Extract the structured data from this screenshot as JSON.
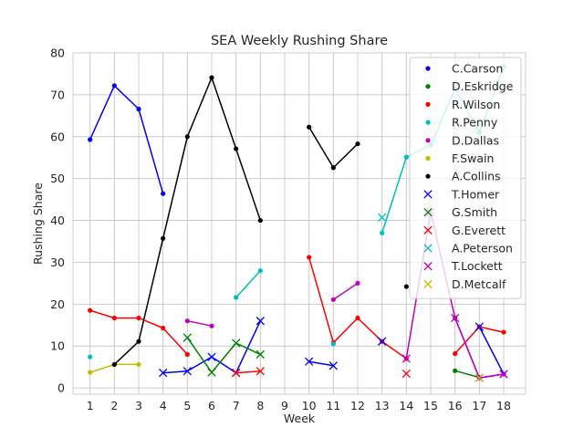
{
  "chart_data": {
    "type": "line",
    "title": "SEA Weekly Rushing Share",
    "xlabel": "Week",
    "ylabel": "Rushing Share",
    "xlim": [
      0.3,
      18.9
    ],
    "ylim": [
      -1.5,
      80
    ],
    "xticks": [
      1,
      2,
      3,
      4,
      5,
      6,
      7,
      8,
      9,
      10,
      11,
      12,
      13,
      14,
      15,
      16,
      17,
      18
    ],
    "yticks": [
      0,
      10,
      20,
      30,
      40,
      50,
      60,
      70,
      80
    ],
    "grid": true,
    "legend_position": "top-right",
    "series": [
      {
        "name": "C.Carson",
        "color": "#0000ff",
        "marker": "dot",
        "x": [
          1,
          2,
          3,
          4
        ],
        "y": [
          59.3,
          72.2,
          66.6,
          46.4
        ]
      },
      {
        "name": "D.Eskridge",
        "color": "#008000",
        "marker": "dot",
        "x": [
          16,
          17
        ],
        "y": [
          4.1,
          2.5
        ]
      },
      {
        "name": "R.Wilson",
        "color": "#ff0000",
        "marker": "dot",
        "x": [
          1,
          2,
          3,
          4,
          5,
          null,
          10,
          11,
          12,
          13,
          14,
          null,
          16,
          17,
          18
        ],
        "y": [
          18.5,
          16.7,
          16.7,
          14.3,
          8.0,
          null,
          31.2,
          10.8,
          16.7,
          11.1,
          7.0,
          null,
          8.2,
          14.6,
          13.3
        ]
      },
      {
        "name": "R.Penny",
        "color": "#00bfbf",
        "marker": "dot",
        "x": [
          1,
          null,
          7,
          8,
          null,
          11,
          null,
          13,
          14,
          15,
          16,
          17,
          18
        ],
        "y": [
          7.4,
          null,
          21.6,
          28.0,
          null,
          10.5,
          null,
          37.0,
          55.1,
          58.0,
          71.4,
          61.0,
          76.7
        ]
      },
      {
        "name": "D.Dallas",
        "color": "#bf00bf",
        "marker": "dot",
        "x": [
          5,
          6,
          null,
          11,
          12,
          null,
          16,
          17,
          18
        ],
        "y": [
          16.0,
          14.8,
          null,
          21.1,
          25.0,
          null,
          16.7,
          2.4,
          3.3
        ]
      },
      {
        "name": "F.Swain",
        "color": "#bfbf00",
        "marker": "dot",
        "x": [
          1,
          2,
          3
        ],
        "y": [
          3.7,
          5.6,
          5.6
        ]
      },
      {
        "name": "A.Collins",
        "color": "#000000",
        "marker": "dot",
        "x": [
          2,
          3,
          4,
          5,
          6,
          7,
          8,
          null,
          10,
          11,
          12,
          null,
          14
        ],
        "y": [
          5.6,
          11.1,
          35.7,
          60.0,
          74.1,
          57.1,
          40.0,
          null,
          62.3,
          52.6,
          58.3,
          null,
          24.2
        ]
      },
      {
        "name": "T.Homer",
        "color": "#0000ff",
        "marker": "x",
        "x": [
          4,
          5,
          6,
          7,
          8,
          null,
          10,
          11,
          null,
          13,
          null,
          17,
          18
        ],
        "y": [
          3.6,
          4.0,
          7.4,
          3.6,
          16.0,
          null,
          6.3,
          5.3,
          null,
          11.1,
          null,
          14.6,
          3.3
        ]
      },
      {
        "name": "G.Smith",
        "color": "#008000",
        "marker": "x",
        "x": [
          5,
          6,
          7,
          8
        ],
        "y": [
          12.0,
          3.7,
          10.7,
          8.0
        ]
      },
      {
        "name": "G.Everett",
        "color": "#ff0000",
        "marker": "x",
        "x": [
          7,
          8,
          null,
          14
        ],
        "y": [
          3.6,
          4.0,
          null,
          3.4
        ]
      },
      {
        "name": "A.Peterson",
        "color": "#00bfbf",
        "marker": "x",
        "x": [
          13
        ],
        "y": [
          40.7
        ]
      },
      {
        "name": "T.Lockett",
        "color": "#bf00bf",
        "marker": "x",
        "x": [
          14,
          15,
          16,
          17,
          18
        ],
        "y": [
          7.0,
          42.0,
          16.7,
          2.4,
          3.3
        ]
      },
      {
        "name": "D.Metcalf",
        "color": "#bfbf00",
        "marker": "x",
        "x": [
          17
        ],
        "y": [
          2.4
        ]
      }
    ]
  }
}
